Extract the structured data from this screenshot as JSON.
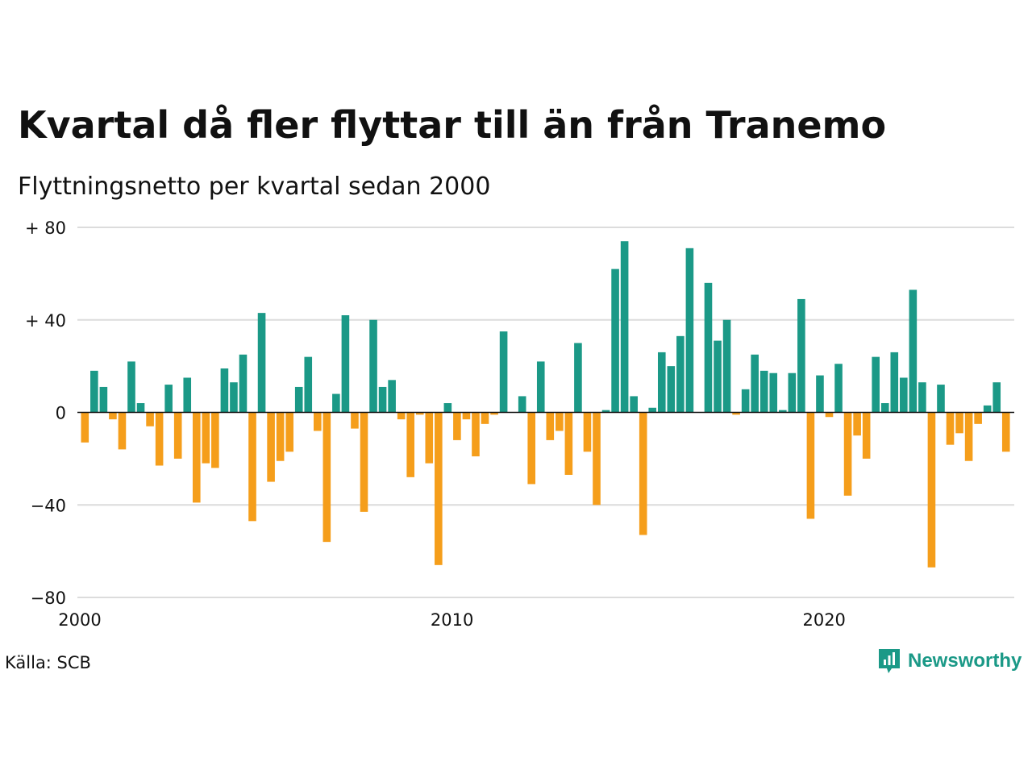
{
  "header": {
    "title": "Kvartal då fler flyttar till än från Tranemo",
    "subtitle": "Flyttningsnetto per kvartal sedan 2000"
  },
  "footer": {
    "source": "Källa: SCB",
    "brand": "Newsworthy",
    "brand_icon": "newsworthy-logo-icon"
  },
  "colors": {
    "positive": "#1b9987",
    "negative": "#f59e1b",
    "grid": "#dcdcdc",
    "zero_line": "#111111",
    "brand": "#1b9987"
  },
  "chart_data": {
    "type": "bar",
    "title": "Kvartal då fler flyttar till än från Tranemo",
    "subtitle": "Flyttningsnetto per kvartal sedan 2000",
    "xlabel": "",
    "ylabel": "",
    "start_year": 2000,
    "ylim": [
      -80,
      80
    ],
    "y_ticks": [
      {
        "value": 80,
        "label": "+ 80"
      },
      {
        "value": 40,
        "label": "+ 40"
      },
      {
        "value": 0,
        "label": "0"
      },
      {
        "value": -40,
        "label": "−40"
      },
      {
        "value": -80,
        "label": "−80"
      }
    ],
    "x_ticks": [
      {
        "year": 2000,
        "label": "2000"
      },
      {
        "year": 2010,
        "label": "2010"
      },
      {
        "year": 2020,
        "label": "2020"
      }
    ],
    "grid": true,
    "series": [
      {
        "values": [
          -13,
          18,
          11,
          -3,
          -16,
          22,
          4,
          -6,
          -23,
          12,
          -20,
          15,
          -39,
          -22,
          -24,
          19,
          13,
          25,
          -47,
          43,
          -30,
          -21,
          -17,
          11,
          24,
          -8,
          -56,
          8,
          42,
          -7,
          -43,
          40,
          11,
          14,
          -3,
          -28,
          -1,
          -22,
          -66,
          4,
          -12,
          -3,
          -19,
          -5,
          -1,
          35,
          0,
          7,
          -31,
          22,
          -12,
          -8,
          -27,
          30,
          -17,
          -40,
          1,
          62,
          74,
          7,
          -53,
          2,
          26,
          20,
          33,
          71,
          0,
          56,
          31,
          40,
          -1,
          10,
          25,
          18,
          17,
          1,
          17,
          49,
          -46,
          16,
          -2,
          21,
          -36,
          -10,
          -20,
          24,
          4,
          26,
          15,
          53,
          13,
          -67,
          12,
          -14,
          -9,
          -21,
          -5,
          3,
          13,
          -17
        ]
      }
    ]
  }
}
